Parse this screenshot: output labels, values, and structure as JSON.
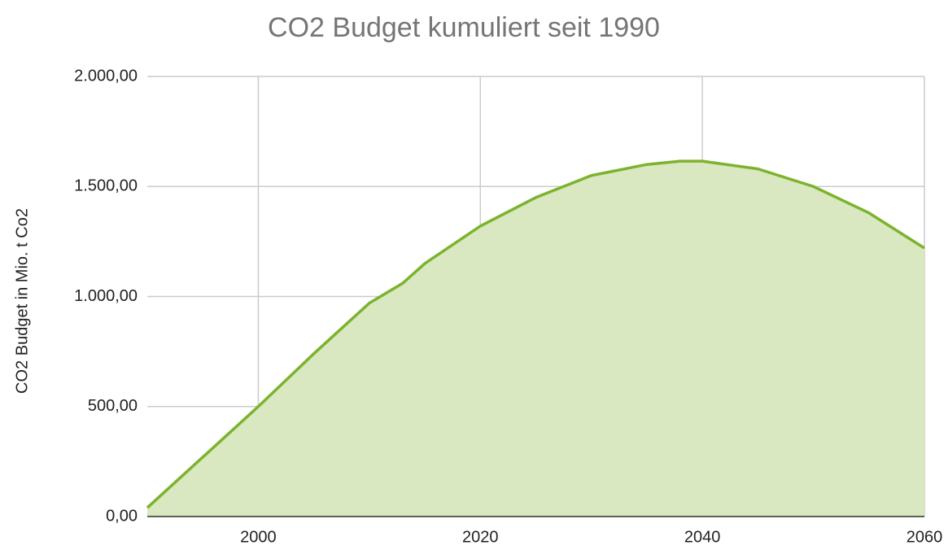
{
  "chart_data": {
    "type": "area",
    "title": "CO2 Budget kumuliert seit 1990",
    "y_label": "CO2 Budget in Mio. t Co2",
    "series": [
      {
        "name": "CO2 Budget",
        "color": "#7cb32e",
        "fill": "#d9e8c0",
        "x": [
          1990,
          1995,
          2000,
          2005,
          2010,
          2013,
          2015,
          2020,
          2025,
          2030,
          2035,
          2038,
          2040,
          2045,
          2050,
          2055,
          2060
        ],
        "values": [
          40,
          270,
          500,
          740,
          970,
          1060,
          1150,
          1320,
          1450,
          1550,
          1600,
          1615,
          1615,
          1580,
          1500,
          1380,
          1220
        ]
      }
    ],
    "xlim": [
      1990,
      2060
    ],
    "xticks": [
      2000,
      2020,
      2040,
      2060
    ],
    "ylim": [
      0,
      2000
    ],
    "yticks": [
      {
        "value": 0,
        "label": "0,00"
      },
      {
        "value": 500,
        "label": "500,00"
      },
      {
        "value": 1000,
        "label": "1.000,00"
      },
      {
        "value": 1500,
        "label": "1.500,00"
      },
      {
        "value": 2000,
        "label": "2.000,00"
      }
    ],
    "grid": true
  }
}
